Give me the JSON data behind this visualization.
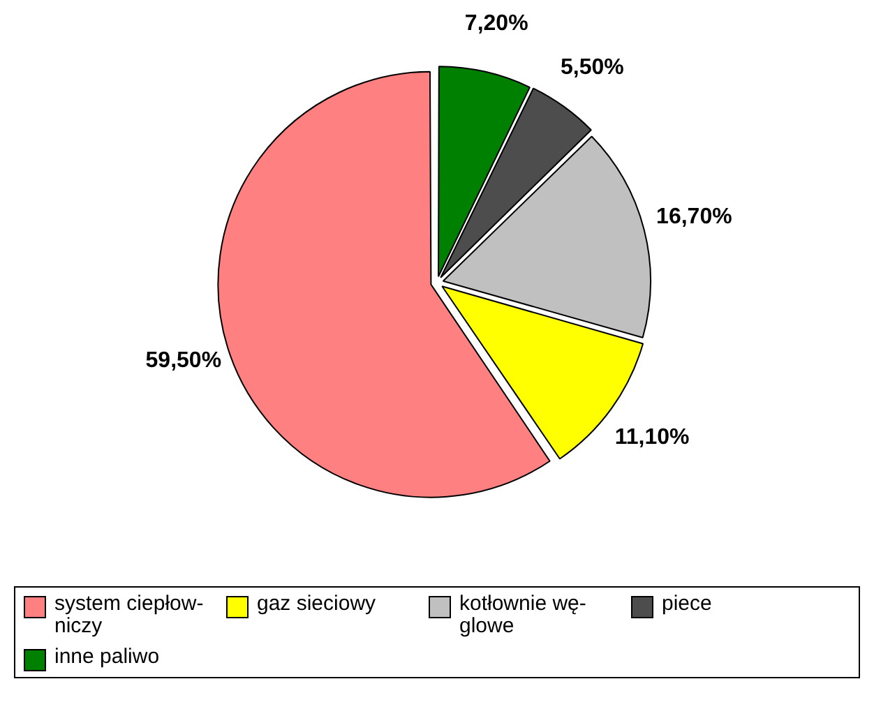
{
  "chart_data": {
    "type": "pie",
    "categories": [
      "system ciepłow-\nniczy",
      "gaz sieciowy",
      "kotłownie wę-\nglowe",
      "piece",
      "inne paliwo"
    ],
    "values": [
      59.5,
      11.1,
      16.7,
      5.5,
      7.2
    ],
    "colors": [
      "#ff8080",
      "#ffff00",
      "#c0c0c0",
      "#4d4d4d",
      "#008000"
    ],
    "value_labels": [
      "59,50%",
      "11,10%",
      "16,70%",
      "5,50%",
      "7,20%"
    ],
    "legend": "bottom"
  }
}
